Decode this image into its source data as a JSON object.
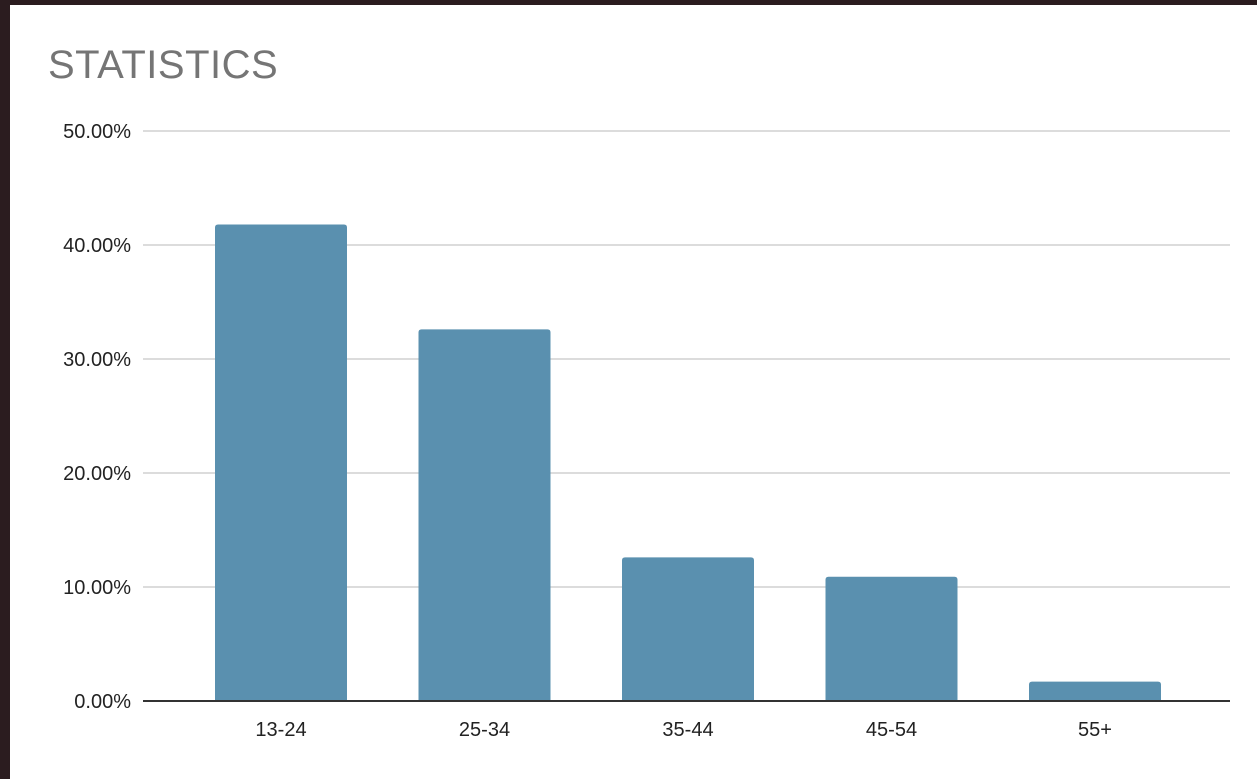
{
  "chart_data": {
    "type": "bar",
    "title": "STATISTICS",
    "xlabel": "",
    "ylabel": "",
    "categories": [
      "13-24",
      "25-34",
      "35-44",
      "45-54",
      "55+"
    ],
    "values": [
      41.8,
      32.6,
      12.6,
      10.9,
      1.7
    ],
    "ylim": [
      0,
      50
    ],
    "yticks": [
      0,
      10,
      20,
      30,
      40,
      50
    ],
    "ytick_labels": [
      "0.00%",
      "10.00%",
      "20.00%",
      "30.00%",
      "40.00%",
      "50.00%"
    ],
    "grid": true,
    "legend": "none",
    "bar_color": "#5a90af",
    "grid_color": "#d0d0d0",
    "axis_color": "#333333"
  }
}
